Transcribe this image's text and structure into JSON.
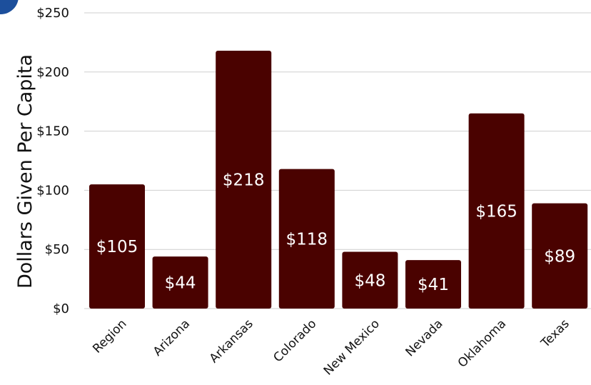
{
  "colors": {
    "bar": "#4a0200",
    "badge": "#1c4f9c",
    "grid": "#cfcfcf",
    "data_label": "#ffffff"
  },
  "chart_data": {
    "type": "bar",
    "categories": [
      "Region",
      "Arizona",
      "Arkansas",
      "Colorado",
      "New Mexico",
      "Nevada",
      "Oklahoma",
      "Texas"
    ],
    "values": [
      105,
      44,
      218,
      118,
      48,
      41,
      165,
      89
    ],
    "data_labels": [
      "$105",
      "$44",
      "$218",
      "$118",
      "$48",
      "$41",
      "$165",
      "$89"
    ],
    "title": "",
    "xlabel": "",
    "ylabel": "Dollars Given Per Capita",
    "ylim": [
      0,
      250
    ],
    "yticks": [
      0,
      50,
      100,
      150,
      200,
      250
    ],
    "ytick_labels": [
      "$0",
      "$50",
      "$100",
      "$150",
      "$200",
      "$250"
    ],
    "grid": "horizontal",
    "legend": "none"
  }
}
